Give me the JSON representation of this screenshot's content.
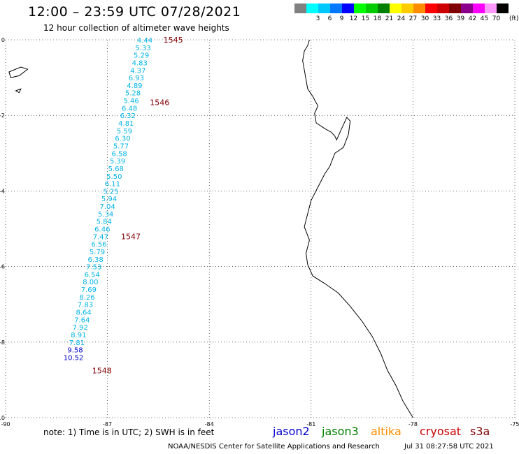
{
  "header": {
    "title": "12:00 – 23:59 UTC 07/28/2021",
    "subtitle": "12 hour collection of altimeter wave heights"
  },
  "color_scale": {
    "unit": "(ft)",
    "items": [
      {
        "label": "",
        "color": "#808080"
      },
      {
        "label": "3",
        "color": "#00FFFF"
      },
      {
        "label": "6",
        "color": "#00C8FF"
      },
      {
        "label": "9",
        "color": "#0078FF"
      },
      {
        "label": "12",
        "color": "#0000FF"
      },
      {
        "label": "15",
        "color": "#00FF00"
      },
      {
        "label": "18",
        "color": "#00CC00"
      },
      {
        "label": "21",
        "color": "#008000"
      },
      {
        "label": "24",
        "color": "#FFFF00"
      },
      {
        "label": "27",
        "color": "#FFCC00"
      },
      {
        "label": "30",
        "color": "#FF8C00"
      },
      {
        "label": "33",
        "color": "#FF0000"
      },
      {
        "label": "36",
        "color": "#CC0000"
      },
      {
        "label": "39",
        "color": "#800000"
      },
      {
        "label": "42",
        "color": "#8B008B"
      },
      {
        "label": "45",
        "color": "#FF00FF"
      },
      {
        "label": "70",
        "color": "#FF99FF"
      },
      {
        "label": "",
        "color": "#000000"
      }
    ]
  },
  "map": {
    "lon_range": [
      -90,
      -75
    ],
    "lat_range": [
      -10,
      0
    ],
    "lon_ticks": [
      {
        "value": -90,
        "label": "-90"
      },
      {
        "value": -87,
        "label": "-87"
      },
      {
        "value": -84,
        "label": "-84"
      },
      {
        "value": -81,
        "label": "-81"
      },
      {
        "value": -78,
        "label": "-78"
      },
      {
        "value": -75,
        "label": "-75"
      }
    ],
    "lat_ticks": [
      {
        "value": 0,
        "label": "0"
      },
      {
        "value": -2,
        "label": "-2"
      },
      {
        "value": -4,
        "label": "-4"
      },
      {
        "value": -6,
        "label": "-6"
      },
      {
        "value": -8,
        "label": "-8"
      },
      {
        "value": -10,
        "label": "-10"
      }
    ],
    "coastline": [
      [
        -81.05,
        0
      ],
      [
        -81.1,
        -0.15
      ],
      [
        -81.2,
        -0.3
      ],
      [
        -81.25,
        -0.55
      ],
      [
        -81.2,
        -0.8
      ],
      [
        -81.15,
        -1.05
      ],
      [
        -81.1,
        -1.3
      ],
      [
        -80.95,
        -1.5
      ],
      [
        -80.8,
        -1.75
      ],
      [
        -80.9,
        -1.95
      ],
      [
        -80.85,
        -2.2
      ],
      [
        -80.6,
        -2.35
      ],
      [
        -80.4,
        -2.45
      ],
      [
        -80.3,
        -2.55
      ],
      [
        -80.25,
        -2.65
      ],
      [
        -80.1,
        -2.35
      ],
      [
        -79.95,
        -2.05
      ],
      [
        -79.85,
        -2.15
      ],
      [
        -79.9,
        -2.5
      ],
      [
        -80.05,
        -2.85
      ],
      [
        -80.3,
        -3.0
      ],
      [
        -80.45,
        -3.35
      ],
      [
        -80.6,
        -3.55
      ],
      [
        -80.8,
        -3.9
      ],
      [
        -81.0,
        -4.25
      ],
      [
        -81.1,
        -4.6
      ],
      [
        -81.2,
        -4.95
      ],
      [
        -81.05,
        -5.3
      ],
      [
        -81.15,
        -5.65
      ],
      [
        -81.1,
        -5.95
      ],
      [
        -80.95,
        -6.25
      ],
      [
        -80.6,
        -6.45
      ],
      [
        -80.2,
        -6.7
      ],
      [
        -79.85,
        -7.05
      ],
      [
        -79.5,
        -7.45
      ],
      [
        -79.2,
        -7.85
      ],
      [
        -78.95,
        -8.3
      ],
      [
        -78.75,
        -8.75
      ],
      [
        -78.5,
        -9.15
      ],
      [
        -78.3,
        -9.55
      ],
      [
        -78.1,
        -9.85
      ],
      [
        -78.0,
        -10.0
      ]
    ],
    "islands": [
      [
        [
          -89.9,
          -0.85
        ],
        [
          -89.55,
          -0.72
        ],
        [
          -89.35,
          -0.78
        ],
        [
          -89.6,
          -0.95
        ],
        [
          -89.85,
          -1.0
        ]
      ],
      [
        [
          -89.7,
          -1.35
        ],
        [
          -89.55,
          -1.3
        ],
        [
          -89.6,
          -1.4
        ]
      ]
    ]
  },
  "passes": [
    {
      "label": "1545",
      "lon": -85.35,
      "lat": 0.0
    },
    {
      "label": "1546",
      "lon": -85.75,
      "lat": -1.65
    },
    {
      "label": "1547",
      "lon": -86.6,
      "lat": -5.2
    },
    {
      "label": "1548",
      "lon": -87.45,
      "lat": -8.75
    }
  ],
  "wave_heights": [
    {
      "lat": 0.0,
      "lon": -85.9,
      "value": "4.44"
    },
    {
      "lat": -0.2,
      "lon": -85.95,
      "value": "5.33"
    },
    {
      "lat": -0.4,
      "lon": -86.0,
      "value": "5.29"
    },
    {
      "lat": -0.6,
      "lon": -86.05,
      "value": "4.83"
    },
    {
      "lat": -0.8,
      "lon": -86.1,
      "value": "4.37"
    },
    {
      "lat": -1.0,
      "lon": -86.15,
      "value": "6.93"
    },
    {
      "lat": -1.2,
      "lon": -86.2,
      "value": "4.89"
    },
    {
      "lat": -1.4,
      "lon": -86.25,
      "value": "5.28"
    },
    {
      "lat": -1.6,
      "lon": -86.3,
      "value": "5.46"
    },
    {
      "lat": -1.8,
      "lon": -86.35,
      "value": "6.48"
    },
    {
      "lat": -2.0,
      "lon": -86.4,
      "value": "6.32"
    },
    {
      "lat": -2.2,
      "lon": -86.45,
      "value": "4.81"
    },
    {
      "lat": -2.4,
      "lon": -86.5,
      "value": "5.59"
    },
    {
      "lat": -2.6,
      "lon": -86.55,
      "value": "6.30"
    },
    {
      "lat": -2.8,
      "lon": -86.6,
      "value": "5.77"
    },
    {
      "lat": -3.0,
      "lon": -86.65,
      "value": "6.58"
    },
    {
      "lat": -3.2,
      "lon": -86.7,
      "value": "5.39"
    },
    {
      "lat": -3.4,
      "lon": -86.75,
      "value": "5.68"
    },
    {
      "lat": -3.6,
      "lon": -86.8,
      "value": "5.50"
    },
    {
      "lat": -3.8,
      "lon": -86.85,
      "value": "6.11"
    },
    {
      "lat": -4.0,
      "lon": -86.9,
      "value": "5.25"
    },
    {
      "lat": -4.2,
      "lon": -86.95,
      "value": "5.94"
    },
    {
      "lat": -4.4,
      "lon": -87.0,
      "value": "7.04"
    },
    {
      "lat": -4.6,
      "lon": -87.05,
      "value": "5.34"
    },
    {
      "lat": -4.8,
      "lon": -87.1,
      "value": "5.84"
    },
    {
      "lat": -5.0,
      "lon": -87.15,
      "value": "6.46"
    },
    {
      "lat": -5.2,
      "lon": -87.2,
      "value": "7.47"
    },
    {
      "lat": -5.4,
      "lon": -87.25,
      "value": "6.56"
    },
    {
      "lat": -5.6,
      "lon": -87.3,
      "value": "5.79"
    },
    {
      "lat": -5.8,
      "lon": -87.35,
      "value": "6.38"
    },
    {
      "lat": -6.0,
      "lon": -87.4,
      "value": "7.53"
    },
    {
      "lat": -6.2,
      "lon": -87.45,
      "value": "6.54"
    },
    {
      "lat": -6.4,
      "lon": -87.5,
      "value": "8.00"
    },
    {
      "lat": -6.6,
      "lon": -87.55,
      "value": "7.69"
    },
    {
      "lat": -6.8,
      "lon": -87.6,
      "value": "8.26"
    },
    {
      "lat": -7.0,
      "lon": -87.65,
      "value": "7.83"
    },
    {
      "lat": -7.2,
      "lon": -87.7,
      "value": "8.64"
    },
    {
      "lat": -7.4,
      "lon": -87.75,
      "value": "7.64"
    },
    {
      "lat": -7.6,
      "lon": -87.8,
      "value": "7.92"
    },
    {
      "lat": -7.8,
      "lon": -87.85,
      "value": "8.91"
    },
    {
      "lat": -8.0,
      "lon": -87.9,
      "value": "7.81"
    },
    {
      "lat": -8.2,
      "lon": -87.95,
      "value": "9.58"
    },
    {
      "lat": -8.4,
      "lon": -88.0,
      "value": "10.52"
    }
  ],
  "footer": {
    "note": "note:  1) Time is in UTC;  2) SWH is in feet",
    "credit": "NOAA/NESDIS Center for Satellite Applications and Research",
    "timestamp": "Jul 31 08:27:58 UTC 2021",
    "satellites": [
      {
        "name": "jason2",
        "color": "#0000CC"
      },
      {
        "name": "jason3",
        "color": "#008000"
      },
      {
        "name": "altika",
        "color": "#FF8C00"
      },
      {
        "name": "cryosat",
        "color": "#CC0000"
      },
      {
        "name": "s3a",
        "color": "#800000"
      }
    ]
  }
}
